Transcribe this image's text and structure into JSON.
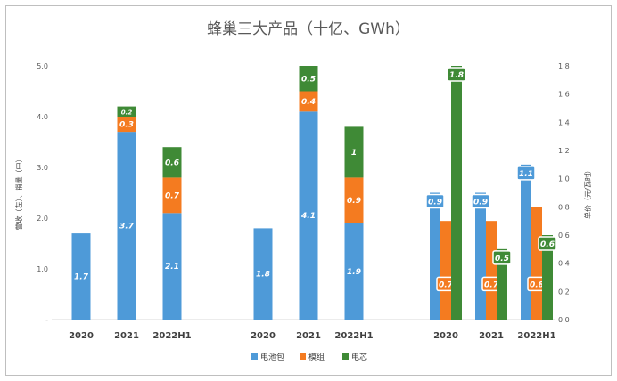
{
  "chart_data": {
    "type": "bar",
    "title": "蜂巢三大产品（十亿、GWh）",
    "y_left_label": "营收（左）、销量（中）",
    "y_right_label": "单价（元/瓦时）",
    "ylim_left": [
      0,
      5.0
    ],
    "ylim_right": [
      0,
      1.8
    ],
    "y_left_ticks": [
      "-",
      "1.0",
      "2.0",
      "3.0",
      "4.0",
      "5.0"
    ],
    "y_right_ticks": [
      "0.0",
      "0.2",
      "0.4",
      "0.6",
      "0.8",
      "1.0",
      "1.2",
      "1.4",
      "1.6",
      "1.8"
    ],
    "legend": [
      "电池包",
      "模组",
      "电芯"
    ],
    "legend_position": "bottom",
    "colors": {
      "pack": "#4e9ad8",
      "module": "#f47b20",
      "cell": "#3f8a36"
    },
    "groups": [
      {
        "axis": "left",
        "categories": [
          "2020",
          "2021",
          "2022H1"
        ],
        "series": [
          {
            "name": "电池包",
            "values": [
              1.7,
              3.7,
              2.1
            ]
          },
          {
            "name": "模组",
            "values": [
              0,
              0.3,
              0.7
            ]
          },
          {
            "name": "电芯",
            "values": [
              0,
              0.2,
              0.6
            ]
          }
        ]
      },
      {
        "axis": "left",
        "categories": [
          "2020",
          "2021",
          "2022H1"
        ],
        "series": [
          {
            "name": "电池包",
            "values": [
              1.8,
              4.1,
              1.9
            ]
          },
          {
            "name": "模组",
            "values": [
              0,
              0.4,
              0.9
            ]
          },
          {
            "name": "电芯",
            "values": [
              0,
              0.5,
              1.0
            ]
          }
        ]
      },
      {
        "axis": "right",
        "categories": [
          "2020",
          "2021",
          "2022H1"
        ],
        "series": [
          {
            "name": "电池包",
            "values": [
              0.9,
              0.9,
              1.1
            ]
          },
          {
            "name": "模组",
            "values": [
              0.7,
              0.7,
              0.8
            ]
          },
          {
            "name": "电芯",
            "values": [
              1.8,
              0.5,
              0.6
            ]
          }
        ]
      }
    ]
  }
}
